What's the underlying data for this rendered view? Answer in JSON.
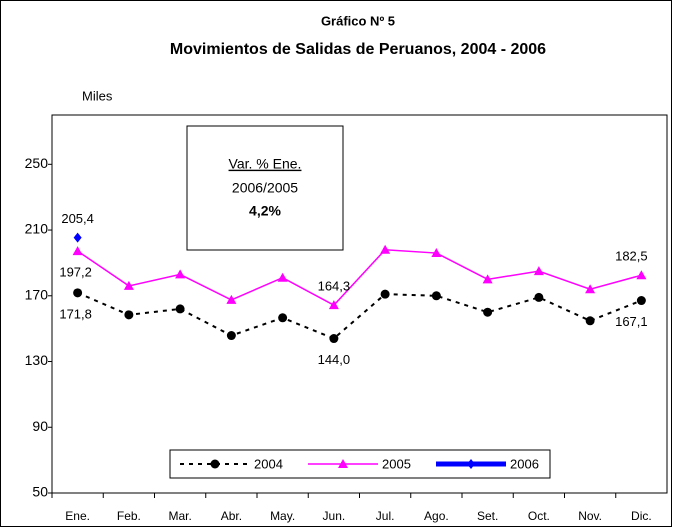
{
  "chart_data": {
    "type": "line",
    "title": "Gráfico Nº 5",
    "subtitle": "Movimientos de Salidas  de Peruanos, 2004 - 2006",
    "y_label": "Miles",
    "categories": [
      "Ene.",
      "Feb.",
      "Mar.",
      "Abr.",
      "May.",
      "Jun.",
      "Jul.",
      "Ago.",
      "Set.",
      "Oct.",
      "Nov.",
      "Dic."
    ],
    "series": [
      {
        "name": "2004",
        "color": "#000000",
        "marker": "circle",
        "dash": true,
        "values": [
          171.8,
          158.4,
          162,
          145.8,
          156.6,
          144.0,
          171,
          170,
          160,
          169,
          154.8,
          167.1
        ],
        "value_labels": [
          "171,8",
          null,
          null,
          null,
          null,
          "144,0",
          null,
          null,
          null,
          null,
          null,
          "167,1"
        ]
      },
      {
        "name": "2005",
        "color": "#ff00ff",
        "marker": "triangle",
        "dash": false,
        "values": [
          197.2,
          176,
          183,
          167.5,
          181,
          164.3,
          198,
          196,
          180,
          185,
          174,
          182.5
        ],
        "value_labels": [
          "197,2",
          null,
          null,
          null,
          null,
          "164,3",
          null,
          null,
          null,
          null,
          null,
          "182,5"
        ]
      },
      {
        "name": "2006",
        "color": "#0000ff",
        "marker": "diamond",
        "dash": false,
        "values": [
          205.4,
          null,
          null,
          null,
          null,
          null,
          null,
          null,
          null,
          null,
          null,
          null
        ],
        "value_labels": [
          "205,4",
          null,
          null,
          null,
          null,
          null,
          null,
          null,
          null,
          null,
          null,
          null
        ]
      }
    ],
    "annotation": {
      "line1": "Var. % Ene.",
      "line2": "2006/2005",
      "line3": "4,2%"
    },
    "ylim": [
      50,
      280
    ],
    "yticks": [
      50,
      90,
      130,
      170,
      210,
      250
    ],
    "grid": false,
    "legend": "bottom"
  }
}
